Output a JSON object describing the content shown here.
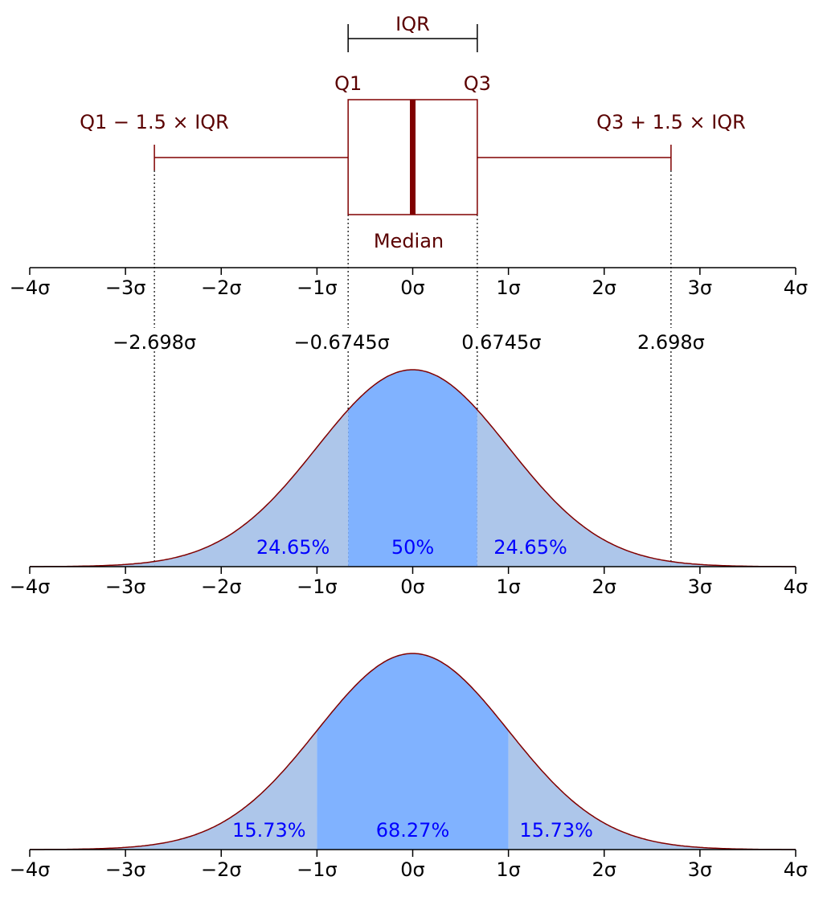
{
  "chart_data": {
    "type": "area",
    "title": "",
    "colors": {
      "box": "#800000",
      "label": "#5a0000",
      "tails": "#adc6ea",
      "center": "#80b2ff",
      "percent_text": "#0000ff",
      "axis": "#000000"
    },
    "xlim": [
      -4,
      4
    ],
    "tick_labels": [
      "−4σ",
      "−3σ",
      "−2σ",
      "−1σ",
      "0σ",
      "1σ",
      "2σ",
      "3σ",
      "4σ"
    ],
    "ticks": [
      -4,
      -3,
      -2,
      -1,
      0,
      1,
      2,
      3,
      4
    ],
    "boxplot": {
      "q1": -0.6745,
      "median": 0,
      "q3": 0.6745,
      "whisker_low": -2.698,
      "whisker_high": 2.698,
      "labels": {
        "iqr": "IQR",
        "q1": "Q1",
        "q3": "Q3",
        "median": "Median",
        "low_fence": "Q1 − 1.5 × IQR",
        "high_fence": "Q3 + 1.5 × IQR"
      }
    },
    "marker_labels": [
      "−2.698σ",
      "−0.6745σ",
      "0.6745σ",
      "2.698σ"
    ],
    "pdf_quartiles": {
      "bounds": [
        -2.698,
        -0.6745,
        0.6745,
        2.698
      ],
      "regions": [
        {
          "label": "24.65%",
          "x": -1.25
        },
        {
          "label": "50%",
          "x": 0
        },
        {
          "label": "24.65%",
          "x": 1.23
        }
      ]
    },
    "pdf_sigma": {
      "bounds": [
        -4,
        -1,
        1,
        4
      ],
      "regions": [
        {
          "label": "15.73%",
          "x": -1.5
        },
        {
          "label": "68.27%",
          "x": 0
        },
        {
          "label": "15.73%",
          "x": 1.5
        }
      ]
    }
  }
}
